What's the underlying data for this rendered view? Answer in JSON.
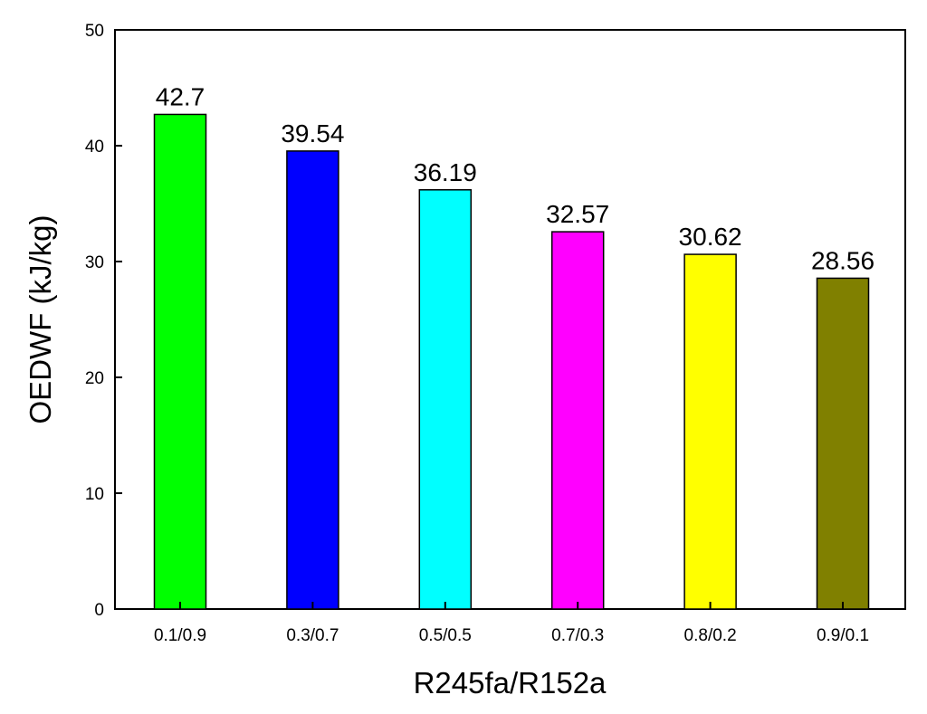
{
  "chart_data": {
    "type": "bar",
    "title": "",
    "xlabel": "R245fa/R152a",
    "ylabel": "OEDWF (kJ/kg)",
    "categories": [
      "0.1/0.9",
      "0.3/0.7",
      "0.5/0.5",
      "0.7/0.3",
      "0.8/0.2",
      "0.9/0.1"
    ],
    "values": [
      42.7,
      39.54,
      36.19,
      32.57,
      30.62,
      28.56
    ],
    "value_labels": [
      "42.7",
      "39.54",
      "36.19",
      "32.57",
      "30.62",
      "28.56"
    ],
    "colors": [
      "#00ff00",
      "#0000ff",
      "#00ffff",
      "#ff00ff",
      "#ffff00",
      "#808000"
    ],
    "ylim": [
      0,
      50
    ],
    "yticks": [
      0,
      10,
      20,
      30,
      40,
      50
    ],
    "grid": false,
    "legend": "none"
  }
}
